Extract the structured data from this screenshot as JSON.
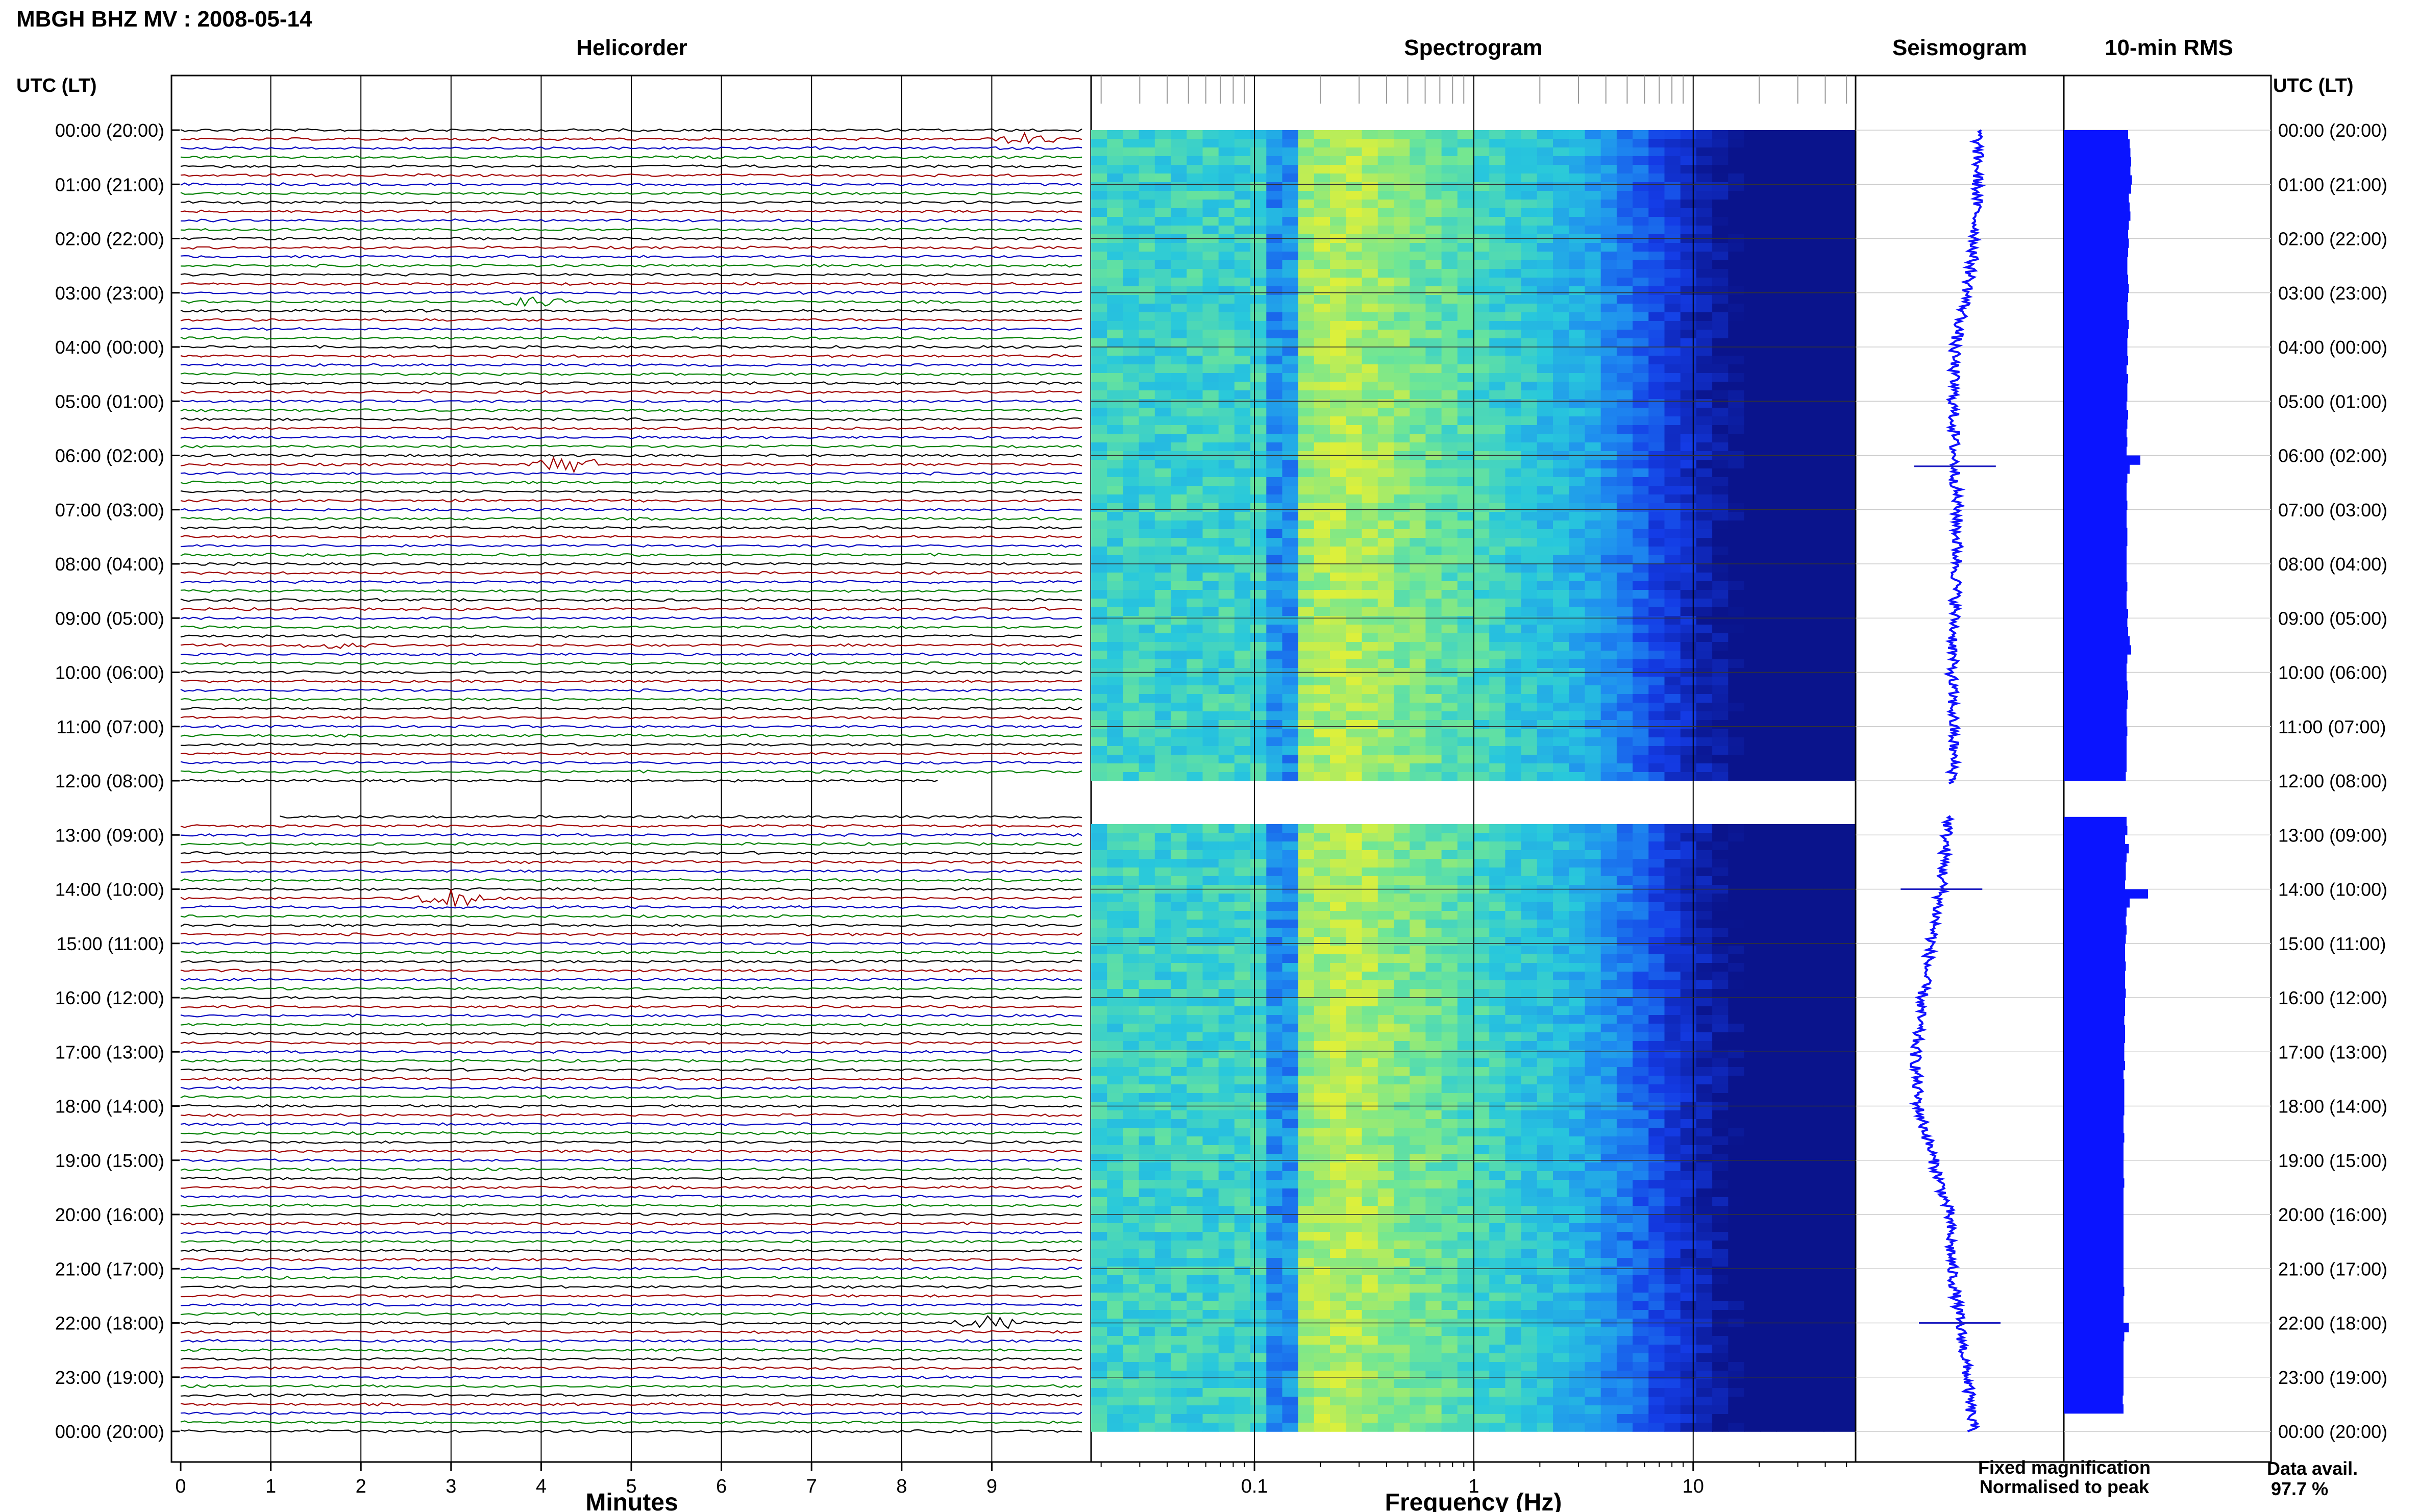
{
  "header": {
    "title": "MBGH BHZ MV : 2008-05-14"
  },
  "panels": {
    "helicorder": "Helicorder",
    "spectrogram": "Spectrogram",
    "seismogram": "Seismogram",
    "rms": "10-min RMS"
  },
  "time_axis": {
    "left_header": "UTC (LT)",
    "right_header": "UTC (LT)",
    "ticks": [
      "00:00 (20:00)",
      "01:00 (21:00)",
      "02:00 (22:00)",
      "03:00 (23:00)",
      "04:00 (00:00)",
      "05:00 (01:00)",
      "06:00 (02:00)",
      "07:00 (03:00)",
      "08:00 (04:00)",
      "09:00 (05:00)",
      "10:00 (06:00)",
      "11:00 (07:00)",
      "12:00 (08:00)",
      "13:00 (09:00)",
      "14:00 (10:00)",
      "15:00 (11:00)",
      "16:00 (12:00)",
      "17:00 (13:00)",
      "18:00 (14:00)",
      "19:00 (15:00)",
      "20:00 (16:00)",
      "21:00 (17:00)",
      "22:00 (18:00)",
      "23:00 (19:00)",
      "00:00 (20:00)"
    ]
  },
  "helicorder_axis": {
    "xlabel": "Minutes",
    "ticks": [
      "0",
      "1",
      "2",
      "3",
      "4",
      "5",
      "6",
      "7",
      "8",
      "9"
    ]
  },
  "spectrogram_axis": {
    "xlabel": "Frequency (Hz)",
    "ticks": [
      "0.1",
      "1",
      "10"
    ]
  },
  "legend": {
    "fixed": "Fixed magnification",
    "normalised": "Normalised to peak",
    "fixed_color": "#1010ff",
    "normalised_color": "#ff1010",
    "avail_label": "Data avail.",
    "avail_value": "97.7 %"
  },
  "colors": {
    "trace_cycle": [
      "#000000",
      "#a00000",
      "#0000c0",
      "#008000"
    ],
    "bar": "#0a14ff"
  },
  "chart_data": [
    {
      "type": "line",
      "name": "Helicorder",
      "x_unit": "Minutes",
      "xlim": [
        0,
        10
      ],
      "ylim_hours": [
        0,
        24
      ],
      "lines_per_hour": 6,
      "gap_hours": [
        12.05,
        12.65
      ],
      "events": [
        {
          "hour": 0.1,
          "minute": 9.4,
          "amp": 1.5
        },
        {
          "hour": 3.1,
          "minute": 3.9,
          "amp": 1.4
        },
        {
          "hour": 6.1,
          "minute": 4.3,
          "amp": 2.5
        },
        {
          "hour": 9.5,
          "minute": 1.7,
          "amp": 0.8
        },
        {
          "hour": 14.1,
          "minute": 3.0,
          "amp": 3.0
        },
        {
          "hour": 22.0,
          "minute": 9.0,
          "amp": 2.0
        }
      ]
    },
    {
      "type": "heatmap",
      "name": "Spectrogram",
      "xlabel": "Frequency (Hz)",
      "x_scale": "log",
      "xlim": [
        0.018,
        55
      ],
      "ylim_hours": [
        0,
        24
      ],
      "gap_hours": [
        12.05,
        12.65
      ]
    },
    {
      "type": "line",
      "name": "Seismogram",
      "ylim_hours": [
        0,
        24
      ],
      "gap_hours": [
        12.05,
        12.65
      ],
      "offset_hours": [
        0,
        1,
        2,
        3,
        4,
        5,
        6,
        7,
        8,
        9,
        10,
        11,
        12,
        13,
        14,
        15,
        16,
        17,
        18,
        19,
        20,
        21,
        22,
        23,
        24
      ],
      "offset": [
        0.35,
        0.34,
        0.3,
        0.15,
        -0.1,
        -0.12,
        -0.1,
        -0.05,
        -0.05,
        -0.1,
        -0.15,
        -0.12,
        -0.12,
        -0.25,
        -0.35,
        -0.55,
        -0.72,
        -0.85,
        -0.8,
        -0.5,
        -0.2,
        -0.15,
        0.0,
        0.15,
        0.25
      ],
      "spikes_hours": [
        6.2,
        14.0,
        22.0
      ]
    },
    {
      "type": "bar",
      "name": "10-min RMS",
      "ylim_hours": [
        0,
        24
      ],
      "gap_hours": [
        12.05,
        12.65
      ],
      "values": [
        0.84,
        0.86,
        0.87,
        0.88,
        0.87,
        0.89,
        0.88,
        0.85,
        0.86,
        0.87,
        0.85,
        0.84,
        0.85,
        0.84,
        0.83,
        0.83,
        0.84,
        0.85,
        0.84,
        0.83,
        0.83,
        0.85,
        0.84,
        0.83,
        0.83,
        0.84,
        0.82,
        0.84,
        0.83,
        0.83,
        0.82,
        0.84,
        0.83,
        0.82,
        0.83,
        0.82,
        1.0,
        0.86,
        0.83,
        0.82,
        0.82,
        0.83,
        0.82,
        0.82,
        0.83,
        0.83,
        0.82,
        0.82,
        0.82,
        0.82,
        0.83,
        0.82,
        0.82,
        0.84,
        0.83,
        0.84,
        0.86,
        0.88,
        0.83,
        0.82,
        0.82,
        0.83,
        0.84,
        0.83,
        0.82,
        0.82,
        0.83,
        0.82,
        0.82,
        0.82,
        0.82,
        0.81,
        0.81,
        0.82,
        0.81,
        0.82,
        0.82,
        0.83,
        0.8,
        0.85,
        0.82,
        0.81,
        0.81,
        0.8,
        1.1,
        0.86,
        0.82,
        0.81,
        0.82,
        0.81,
        0.8,
        0.8,
        0.81,
        0.8,
        0.8,
        0.81,
        0.8,
        0.8,
        0.79,
        0.8,
        0.8,
        0.79,
        0.79,
        0.8,
        0.78,
        0.79,
        0.79,
        0.79,
        0.79,
        0.78,
        0.78,
        0.79,
        0.78,
        0.78,
        0.78,
        0.78,
        0.79,
        0.78,
        0.78,
        0.78,
        0.78,
        0.78,
        0.78,
        0.78,
        0.78,
        0.78,
        0.78,
        0.78,
        0.79,
        0.78,
        0.78,
        0.78,
        0.85,
        0.79,
        0.78,
        0.78,
        0.78,
        0.78,
        0.78,
        0.78,
        0.77,
        0.78
      ]
    }
  ]
}
